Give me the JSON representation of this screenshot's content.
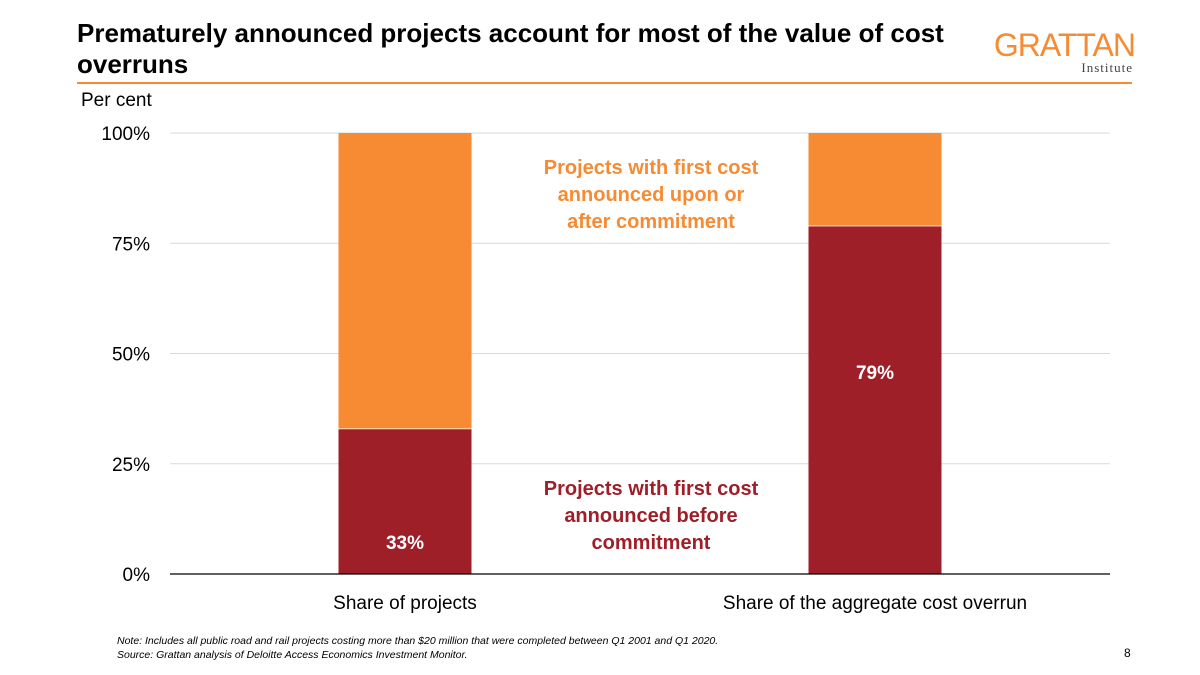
{
  "slide": {
    "title": "Prematurely announced projects account for most of the value of cost overruns",
    "page_number": "8",
    "note": "Note: Includes all public road and rail projects costing more than $20 million that were completed between Q1 2001 and Q1 2020.",
    "source": "Source: Grattan analysis of Deloitte Access Economics Investment Monitor."
  },
  "logo": {
    "main": "GRATTAN",
    "sub": "Institute"
  },
  "colors": {
    "accent": "#F68B33",
    "before": "#9E1F28",
    "after": "#F68B33",
    "grid": "#D9D9D9"
  },
  "chart_data": {
    "type": "bar",
    "stacked": true,
    "ylabel": "Per cent",
    "ylim": [
      0,
      100
    ],
    "yticks": [
      "0%",
      "25%",
      "50%",
      "75%",
      "100%"
    ],
    "ytick_values": [
      0,
      25,
      50,
      75,
      100
    ],
    "grid": true,
    "categories": [
      "Share of projects",
      "Share of the aggregate cost overrun"
    ],
    "series": [
      {
        "name": "Projects with first cost announced before commitment",
        "name_lines": [
          "Projects with first cost",
          "announced before",
          "commitment"
        ],
        "values": [
          33,
          79
        ],
        "data_labels": [
          "33%",
          "79%"
        ],
        "color": "#9E1F28"
      },
      {
        "name": "Projects with first cost announced upon or after commitment",
        "name_lines": [
          "Projects with first cost",
          "announced upon or",
          "after commitment"
        ],
        "values": [
          67,
          21
        ],
        "color": "#F68B33"
      }
    ]
  }
}
